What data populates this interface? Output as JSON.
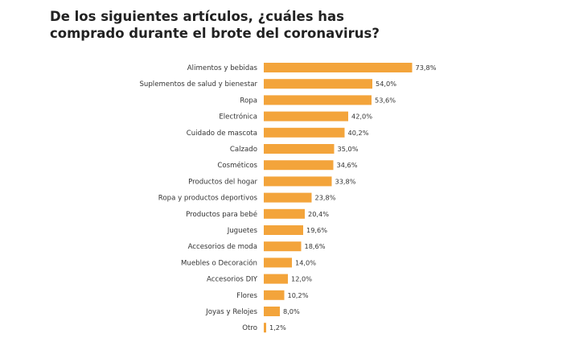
{
  "chart_data": {
    "type": "bar",
    "orientation": "horizontal",
    "title_lines": [
      "De los siguientes artículos, ¿cuáles has",
      "comprado durante el brote del coronavirus?"
    ],
    "xlabel": "",
    "ylabel": "",
    "xlim": [
      0,
      100
    ],
    "grid": false,
    "bar_color": "#f3a43b",
    "categories": [
      "Alimentos y bebidas",
      "Suplementos de salud y bienestar",
      "Ropa",
      "Electrónica",
      "Cuidado de mascota",
      "Calzado",
      "Cosméticos",
      "Productos del hogar",
      "Ropa y productos deportivos",
      "Productos para bebé",
      "Juguetes",
      "Accesorios de moda",
      "Muebles o Decoración",
      "Accesorios DIY",
      "Flores",
      "Joyas y Relojes",
      "Otro"
    ],
    "values": [
      73.8,
      54.0,
      53.6,
      42.0,
      40.2,
      35.0,
      34.6,
      33.8,
      23.8,
      20.4,
      19.6,
      18.6,
      14.0,
      12.0,
      10.2,
      8.0,
      1.2
    ],
    "value_labels": [
      "73,8%",
      "54,0%",
      "53,6%",
      "42,0%",
      "40,2%",
      "35,0%",
      "34,6%",
      "33,8%",
      "23,8%",
      "20,4%",
      "19,6%",
      "18,6%",
      "14,0%",
      "12,0%",
      "10,2%",
      "8,0%",
      "1,2%"
    ]
  }
}
